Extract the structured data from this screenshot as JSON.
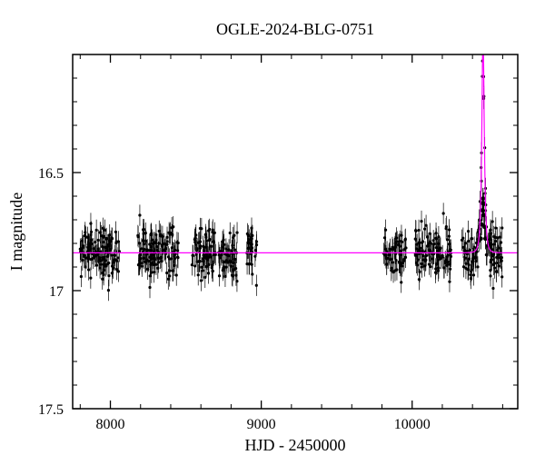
{
  "chart": {
    "type": "scatter",
    "title": "OGLE-2024-BLG-0751",
    "title_fontsize": 18,
    "xlabel": "HJD - 2450000",
    "ylabel": "I magnitude",
    "label_fontsize": 18,
    "tick_fontsize": 16,
    "background_color": "#ffffff",
    "axis_color": "#000000",
    "xlim": [
      7750,
      10700
    ],
    "ylim": [
      17.5,
      16.0
    ],
    "y_inverted": true,
    "xticks": [
      8000,
      9000,
      10000
    ],
    "yticks": [
      16.5,
      17.0,
      17.5
    ],
    "x_minor_step": 200,
    "y_minor_step": 0.1,
    "baseline_mag": 16.84,
    "data_clusters": [
      {
        "x_start": 7800,
        "x_end": 8060,
        "n": 120
      },
      {
        "x_start": 8180,
        "x_end": 8450,
        "n": 120
      },
      {
        "x_start": 8540,
        "x_end": 8840,
        "n": 120
      },
      {
        "x_start": 8900,
        "x_end": 8970,
        "n": 30
      },
      {
        "x_start": 9810,
        "x_end": 9960,
        "n": 60
      },
      {
        "x_start": 10020,
        "x_end": 10260,
        "n": 100
      },
      {
        "x_start": 10330,
        "x_end": 10600,
        "n": 120
      }
    ],
    "scatter_sigma": 0.055,
    "errorbar_half": 0.045,
    "point_color": "#000000",
    "point_radius": 1.6,
    "errorbar_color": "#000000",
    "model": {
      "color": "#ff00ff",
      "width": 1.2,
      "t0": 10470,
      "tE": 14,
      "u0": 0.45
    },
    "event_peak_points": [
      {
        "x": 10455,
        "y": 16.78
      },
      {
        "x": 10460,
        "y": 16.72
      },
      {
        "x": 10465,
        "y": 16.66
      },
      {
        "x": 10468,
        "y": 16.63
      },
      {
        "x": 10470,
        "y": 16.61
      },
      {
        "x": 10473,
        "y": 16.63
      },
      {
        "x": 10476,
        "y": 16.68
      },
      {
        "x": 10480,
        "y": 16.73
      },
      {
        "x": 10486,
        "y": 16.78
      }
    ]
  }
}
